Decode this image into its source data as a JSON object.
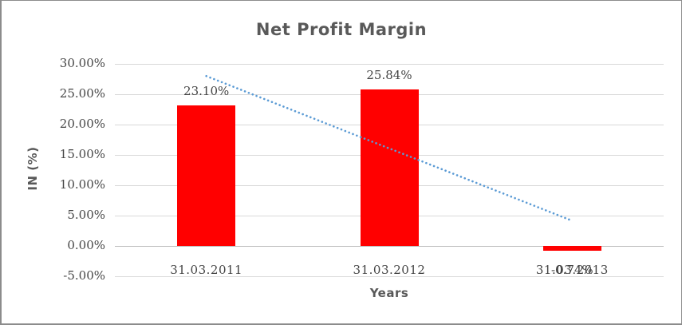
{
  "chart": {
    "title": "Net Profit Margin",
    "x_axis_title": "Years",
    "y_axis_title": "IN (%)",
    "colors": {
      "bar": "#FF0000",
      "trendline": "#5B9BD5",
      "gridline": "#D9D9D9",
      "axis_line": "#BFBFBF",
      "title_text": "#595959",
      "label_text": "#454545",
      "frame_border": "#8c8c8c"
    }
  },
  "chart_data": {
    "type": "bar",
    "title": "Net Profit Margin",
    "xlabel": "Years",
    "ylabel": "IN (%)",
    "categories": [
      "31.03.2011",
      "31.03.2012",
      "31.03.2013"
    ],
    "values": [
      23.1,
      25.84,
      -0.74
    ],
    "data_labels": [
      "23.10%",
      "25.84%",
      "-0.74%"
    ],
    "y_ticks": [
      "30.00%",
      "25.00%",
      "20.00%",
      "15.00%",
      "10.00%",
      "5.00%",
      "0.00%",
      "-5.00%"
    ],
    "ylim": [
      -5,
      30
    ],
    "grid": true,
    "legend": "none",
    "series_count": 1,
    "trendline": {
      "type": "linear",
      "style": "dotted",
      "start_value": 27.99,
      "end_value": 4.15
    }
  }
}
